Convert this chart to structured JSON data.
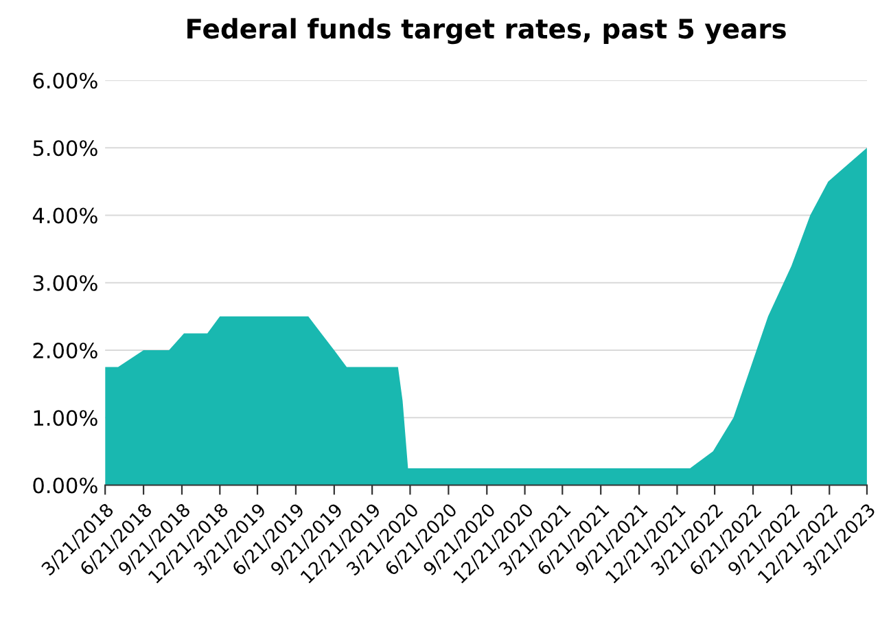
{
  "chart_data": {
    "type": "area",
    "title": "Federal funds target rates, past 5 years",
    "x": [
      "2018-03-21",
      "2018-04-21",
      "2018-06-21",
      "2018-08-21",
      "2018-09-26",
      "2018-11-21",
      "2018-12-21",
      "2019-06-21",
      "2019-07-21",
      "2019-08-21",
      "2019-09-21",
      "2019-10-21",
      "2020-02-21",
      "2020-03-03",
      "2020-03-16",
      "2022-01-21",
      "2022-03-17",
      "2022-05-05",
      "2022-07-27",
      "2022-09-21",
      "2022-11-05",
      "2022-12-18",
      "2023-03-21"
    ],
    "series": [
      {
        "color": "#19b8b0",
        "values": [
          1.75,
          1.75,
          2.0,
          2.0,
          2.25,
          2.25,
          2.5,
          2.5,
          2.5,
          2.25,
          2.0,
          1.75,
          1.75,
          1.25,
          0.25,
          0.25,
          0.5,
          1.0,
          2.5,
          3.25,
          4.0,
          4.5,
          5.0
        ]
      }
    ],
    "xlim": [
      "2018-03-21",
      "2023-03-21"
    ],
    "xticks": [
      {
        "value": "2018-03-21",
        "label": "3/21/2018"
      },
      {
        "value": "2018-06-21",
        "label": "6/21/2018"
      },
      {
        "value": "2018-09-21",
        "label": "9/21/2018"
      },
      {
        "value": "2018-12-21",
        "label": "12/21/2018"
      },
      {
        "value": "2019-03-21",
        "label": "3/21/2019"
      },
      {
        "value": "2019-06-21",
        "label": "6/21/2019"
      },
      {
        "value": "2019-09-21",
        "label": "9/21/2019"
      },
      {
        "value": "2019-12-21",
        "label": "12/21/2019"
      },
      {
        "value": "2020-03-21",
        "label": "3/21/2020"
      },
      {
        "value": "2020-06-21",
        "label": "6/21/2020"
      },
      {
        "value": "2020-09-21",
        "label": "9/21/2020"
      },
      {
        "value": "2020-12-21",
        "label": "12/21/2020"
      },
      {
        "value": "2021-03-21",
        "label": "3/21/2021"
      },
      {
        "value": "2021-06-21",
        "label": "6/21/2021"
      },
      {
        "value": "2021-09-21",
        "label": "9/21/2021"
      },
      {
        "value": "2021-12-21",
        "label": "12/21/2021"
      },
      {
        "value": "2022-03-21",
        "label": "3/21/2022"
      },
      {
        "value": "2022-06-21",
        "label": "6/21/2022"
      },
      {
        "value": "2022-09-21",
        "label": "9/21/2022"
      },
      {
        "value": "2022-12-21",
        "label": "12/21/2022"
      },
      {
        "value": "2023-03-21",
        "label": "3/21/2023"
      }
    ],
    "ylim": [
      0,
      6
    ],
    "yticks": [
      {
        "value": 0,
        "label": "0.00%"
      },
      {
        "value": 1,
        "label": "1.00%"
      },
      {
        "value": 2,
        "label": "2.00%"
      },
      {
        "value": 3,
        "label": "3.00%"
      },
      {
        "value": 4,
        "label": "4.00%"
      },
      {
        "value": 5,
        "label": "5.00%"
      },
      {
        "value": 6,
        "label": "6.00%"
      }
    ],
    "grid": "y"
  }
}
